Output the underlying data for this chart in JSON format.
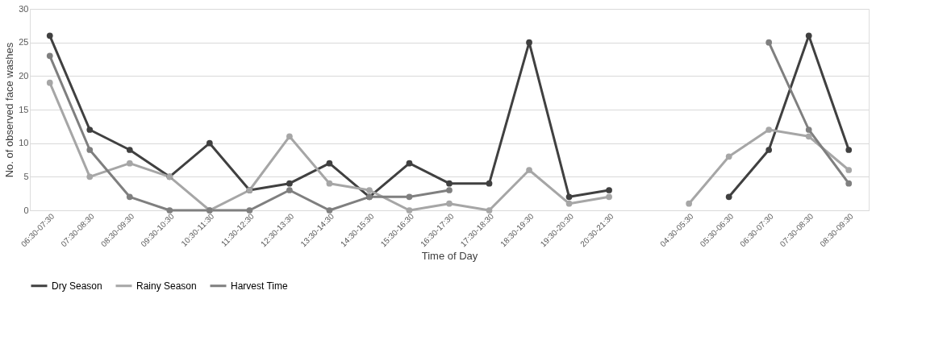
{
  "chart_data": {
    "type": "line",
    "xlabel": "Time of Day",
    "ylabel": "No. of observed face washes",
    "categories": [
      "06:30-07:30",
      "07:30-08:30",
      "08:30-09:30",
      "09:30-10:30",
      "10:30-11:30",
      "11:30-12:30",
      "12:30-13:30",
      "13:30-14:30",
      "14:30-15:30",
      "15:30-16:30",
      "16:30-17:30",
      "17:30-18:30",
      "18:30-19:30",
      "19:30-20:30",
      "20:30-21:30",
      null,
      "04:30-05:30",
      "05:30-06:30",
      "06:30-07:30",
      "07:30-08:30",
      "08:30-09:30"
    ],
    "series": [
      {
        "name": "Dry Season",
        "color": "#404040",
        "values": [
          26,
          12,
          9,
          5,
          10,
          3,
          4,
          7,
          2,
          7,
          4,
          4,
          25,
          2,
          3,
          null,
          null,
          2,
          9,
          26,
          9
        ]
      },
      {
        "name": "Rainy Season",
        "color": "#a6a6a6",
        "values": [
          19,
          5,
          7,
          5,
          0,
          3,
          11,
          4,
          3,
          0,
          1,
          0,
          6,
          1,
          2,
          null,
          1,
          8,
          12,
          11,
          6
        ]
      },
      {
        "name": "Harvest Time",
        "color": "#7f7f7f",
        "values": [
          23,
          9,
          2,
          0,
          0,
          0,
          3,
          0,
          2,
          2,
          3,
          null,
          null,
          null,
          null,
          null,
          null,
          null,
          25,
          12,
          4
        ]
      }
    ],
    "ylim": [
      0,
      30
    ],
    "yticks": [
      0,
      5,
      10,
      15,
      20,
      25,
      30
    ],
    "grid": "y",
    "legend": "bottom",
    "marker": "circle",
    "line_style": "solid"
  }
}
